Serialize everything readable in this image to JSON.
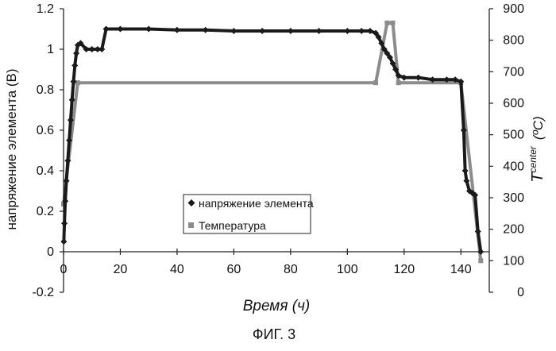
{
  "caption": "ФИГ. 3",
  "chart_data": {
    "type": "line",
    "xlabel": "Время (ч)",
    "ylabel_left": "напряжение элемента (B)",
    "ylabel_right_main": "T",
    "ylabel_right_sub": "center",
    "ylabel_right_unit": "(ºC)",
    "xlim": [
      0,
      150
    ],
    "ylim_left": [
      -0.2,
      1.2
    ],
    "ylim_right": [
      0,
      900
    ],
    "x_ticks": [
      0,
      20,
      40,
      60,
      80,
      100,
      120,
      140
    ],
    "y_left_ticks": [
      -0.2,
      0,
      0.2,
      0.4,
      0.6,
      0.8,
      1,
      1.2
    ],
    "y_left_tick_labels": [
      "-0.2",
      "0",
      "0.2",
      "0.4",
      "0.6",
      "0.8",
      "1",
      "1.2"
    ],
    "y_right_ticks": [
      0,
      100,
      200,
      300,
      400,
      500,
      600,
      700,
      800,
      900
    ],
    "grid": false,
    "legend_position": "lower-center",
    "colors": {
      "voltage": "#1a1a1a",
      "temperature": "#8c8c8c"
    },
    "series": [
      {
        "name": "напряжение элемента",
        "axis": "left",
        "marker": "diamond",
        "x": [
          0.1,
          0.3,
          0.6,
          1.0,
          1.5,
          2.0,
          2.5,
          3.0,
          3.5,
          4.0,
          4.5,
          5.0,
          6.0,
          8.0,
          10.0,
          12.0,
          13.5,
          15,
          20,
          30,
          40,
          50,
          60,
          70,
          80,
          90,
          100,
          105,
          108,
          110,
          111,
          112,
          113,
          114,
          115,
          116,
          117,
          118,
          120,
          125,
          130,
          135,
          138,
          140,
          141,
          141.5,
          142,
          143,
          144,
          145,
          146,
          147
        ],
        "y": [
          0.05,
          0.14,
          0.25,
          0.35,
          0.45,
          0.55,
          0.65,
          0.75,
          0.84,
          0.92,
          0.98,
          1.02,
          1.03,
          1.0,
          1.0,
          1.0,
          1.0,
          1.1,
          1.1,
          1.1,
          1.095,
          1.095,
          1.09,
          1.09,
          1.09,
          1.09,
          1.09,
          1.09,
          1.09,
          1.08,
          1.06,
          1.03,
          1.0,
          0.98,
          0.96,
          0.93,
          0.9,
          0.87,
          0.86,
          0.86,
          0.85,
          0.85,
          0.85,
          0.84,
          0.6,
          0.4,
          0.35,
          0.3,
          0.29,
          0.28,
          0.1,
          0.0
        ]
      },
      {
        "name": "Температура",
        "axis": "right",
        "marker": "square",
        "x": [
          0,
          5,
          110,
          114,
          116,
          118,
          140,
          147
        ],
        "y": [
          280,
          665,
          665,
          855,
          855,
          665,
          665,
          100
        ]
      }
    ]
  }
}
